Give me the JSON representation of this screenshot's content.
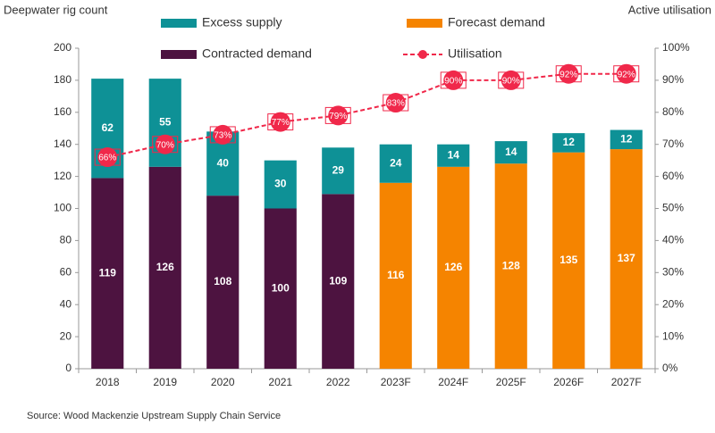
{
  "chart_data": {
    "type": "bar",
    "y_label": "Deepwater rig count",
    "y2_label": "Active utilisation",
    "source": "Source: Wood Mackenzie Upstream Supply Chain Service",
    "categories": [
      "2018",
      "2019",
      "2020",
      "2021",
      "2022",
      "2023F",
      "2024F",
      "2025F",
      "2026F",
      "2027F"
    ],
    "series": [
      {
        "name": "Contracted demand",
        "color": "#4d1340",
        "values": [
          119,
          126,
          108,
          100,
          109,
          null,
          null,
          null,
          null,
          null
        ]
      },
      {
        "name": "Forecast demand",
        "color": "#f58400",
        "values": [
          null,
          null,
          null,
          null,
          null,
          116,
          126,
          128,
          135,
          137
        ]
      },
      {
        "name": "Excess supply",
        "color": "#0e9196",
        "values": [
          62,
          55,
          40,
          30,
          29,
          24,
          14,
          14,
          12,
          12
        ]
      },
      {
        "name": "Utilisation",
        "type": "line",
        "axis": "y2",
        "color": "#f0284a",
        "values": [
          66,
          70,
          73,
          77,
          79,
          83,
          90,
          90,
          92,
          92
        ],
        "value_labels": [
          "66%",
          "70%",
          "73%",
          "77%",
          "79%",
          "83%",
          "90%",
          "90%",
          "92%",
          "92%"
        ]
      }
    ],
    "ylim": [
      0,
      200
    ],
    "yticks": [
      0,
      20,
      40,
      60,
      80,
      100,
      120,
      140,
      160,
      180,
      200
    ],
    "y2lim": [
      0,
      100
    ],
    "y2ticks": [
      {
        "value": 0,
        "label": "0%"
      },
      {
        "value": 10,
        "label": "10%"
      },
      {
        "value": 20,
        "label": "20%"
      },
      {
        "value": 30,
        "label": "30%"
      },
      {
        "value": 40,
        "label": "40%"
      },
      {
        "value": 50,
        "label": "50%"
      },
      {
        "value": 60,
        "label": "60%"
      },
      {
        "value": 70,
        "label": "70%"
      },
      {
        "value": 80,
        "label": "80%"
      },
      {
        "value": 90,
        "label": "90%"
      },
      {
        "value": 100,
        "label": "100%"
      }
    ],
    "grid": false
  }
}
